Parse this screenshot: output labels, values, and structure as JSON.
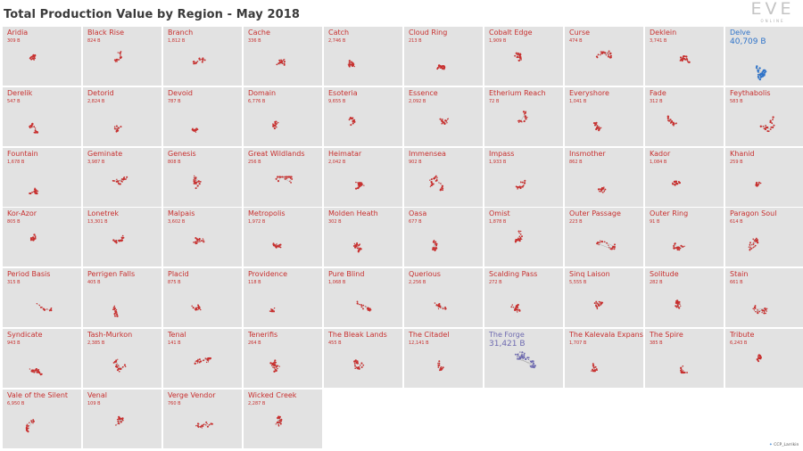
{
  "title": "Total Production Value by Region - May 2018",
  "logo": {
    "main": "EVE",
    "sub": "ONLINE"
  },
  "credit": "CCP_Larrikin",
  "colors": {
    "default": "#c8302f",
    "Delve": "#2e73c9",
    "The Forge": "#6e6ab0",
    "tile_bg": "#e2e2e2"
  },
  "chart_data": {
    "type": "small-multiples",
    "title": "Total Production Value by Region - May 2018",
    "unit": "B",
    "regions": [
      {
        "name": "Aridia",
        "value_label": "309 B",
        "value": 309
      },
      {
        "name": "Black Rise",
        "value_label": "824 B",
        "value": 824
      },
      {
        "name": "Branch",
        "value_label": "1,812 B",
        "value": 1812
      },
      {
        "name": "Cache",
        "value_label": "336 B",
        "value": 336
      },
      {
        "name": "Catch",
        "value_label": "2,746 B",
        "value": 2746
      },
      {
        "name": "Cloud Ring",
        "value_label": "213 B",
        "value": 213
      },
      {
        "name": "Cobalt Edge",
        "value_label": "1,909 B",
        "value": 1909
      },
      {
        "name": "Curse",
        "value_label": "474 B",
        "value": 474
      },
      {
        "name": "Deklein",
        "value_label": "3,741 B",
        "value": 3741
      },
      {
        "name": "Delve",
        "value_label": "40,709 B",
        "value": 40709
      },
      {
        "name": "Derelik",
        "value_label": "547 B",
        "value": 547
      },
      {
        "name": "Detorid",
        "value_label": "2,824 B",
        "value": 2824
      },
      {
        "name": "Devoid",
        "value_label": "787 B",
        "value": 787
      },
      {
        "name": "Domain",
        "value_label": "6,776 B",
        "value": 6776
      },
      {
        "name": "Esoteria",
        "value_label": "9,655 B",
        "value": 9655
      },
      {
        "name": "Essence",
        "value_label": "2,092 B",
        "value": 2092
      },
      {
        "name": "Etherium Reach",
        "value_label": "72 B",
        "value": 72
      },
      {
        "name": "Everyshore",
        "value_label": "1,041 B",
        "value": 1041
      },
      {
        "name": "Fade",
        "value_label": "312 B",
        "value": 312
      },
      {
        "name": "Feythabolis",
        "value_label": "583 B",
        "value": 583
      },
      {
        "name": "Fountain",
        "value_label": "1,678 B",
        "value": 1678
      },
      {
        "name": "Geminate",
        "value_label": "3,987 B",
        "value": 3987
      },
      {
        "name": "Genesis",
        "value_label": "808 B",
        "value": 808
      },
      {
        "name": "Great Wildlands",
        "value_label": "256 B",
        "value": 256
      },
      {
        "name": "Heimatar",
        "value_label": "2,042 B",
        "value": 2042
      },
      {
        "name": "Immensea",
        "value_label": "902 B",
        "value": 902
      },
      {
        "name": "Impass",
        "value_label": "1,933 B",
        "value": 1933
      },
      {
        "name": "Insmother",
        "value_label": "862 B",
        "value": 862
      },
      {
        "name": "Kador",
        "value_label": "1,084 B",
        "value": 1084
      },
      {
        "name": "Khanid",
        "value_label": "259 B",
        "value": 259
      },
      {
        "name": "Kor-Azor",
        "value_label": "805 B",
        "value": 805
      },
      {
        "name": "Lonetrek",
        "value_label": "13,301 B",
        "value": 13301
      },
      {
        "name": "Malpais",
        "value_label": "3,602 B",
        "value": 3602
      },
      {
        "name": "Metropolis",
        "value_label": "1,972 B",
        "value": 1972
      },
      {
        "name": "Molden Heath",
        "value_label": "302 B",
        "value": 302
      },
      {
        "name": "Oasa",
        "value_label": "677 B",
        "value": 677
      },
      {
        "name": "Omist",
        "value_label": "1,878 B",
        "value": 1878
      },
      {
        "name": "Outer Passage",
        "value_label": "223 B",
        "value": 223
      },
      {
        "name": "Outer Ring",
        "value_label": "91 B",
        "value": 91
      },
      {
        "name": "Paragon Soul",
        "value_label": "614 B",
        "value": 614
      },
      {
        "name": "Period Basis",
        "value_label": "315 B",
        "value": 315
      },
      {
        "name": "Perrigen Falls",
        "value_label": "405 B",
        "value": 405
      },
      {
        "name": "Placid",
        "value_label": "875 B",
        "value": 875
      },
      {
        "name": "Providence",
        "value_label": "118 B",
        "value": 118
      },
      {
        "name": "Pure Blind",
        "value_label": "1,068 B",
        "value": 1068
      },
      {
        "name": "Querious",
        "value_label": "2,256 B",
        "value": 2256
      },
      {
        "name": "Scalding Pass",
        "value_label": "272 B",
        "value": 272
      },
      {
        "name": "Sinq Laison",
        "value_label": "5,555 B",
        "value": 5555
      },
      {
        "name": "Solitude",
        "value_label": "282 B",
        "value": 282
      },
      {
        "name": "Stain",
        "value_label": "661 B",
        "value": 661
      },
      {
        "name": "Syndicate",
        "value_label": "943 B",
        "value": 943
      },
      {
        "name": "Tash-Murkon",
        "value_label": "2,385 B",
        "value": 2385
      },
      {
        "name": "Tenal",
        "value_label": "141 B",
        "value": 141
      },
      {
        "name": "Tenerifis",
        "value_label": "264 B",
        "value": 264
      },
      {
        "name": "The Bleak Lands",
        "value_label": "455 B",
        "value": 455
      },
      {
        "name": "The Citadel",
        "value_label": "12,141 B",
        "value": 12141
      },
      {
        "name": "The Forge",
        "value_label": "31,421 B",
        "value": 31421
      },
      {
        "name": "The Kalevala Expanse",
        "value_label": "1,707 B",
        "value": 1707
      },
      {
        "name": "The Spire",
        "value_label": "385 B",
        "value": 385
      },
      {
        "name": "Tribute",
        "value_label": "6,243 B",
        "value": 6243
      },
      {
        "name": "Vale of the Silent",
        "value_label": "6,950 B",
        "value": 6950
      },
      {
        "name": "Venal",
        "value_label": "109 B",
        "value": 109
      },
      {
        "name": "Verge Vendor",
        "value_label": "760 B",
        "value": 760
      },
      {
        "name": "Wicked Creek",
        "value_label": "2,287 B",
        "value": 2287
      }
    ]
  }
}
